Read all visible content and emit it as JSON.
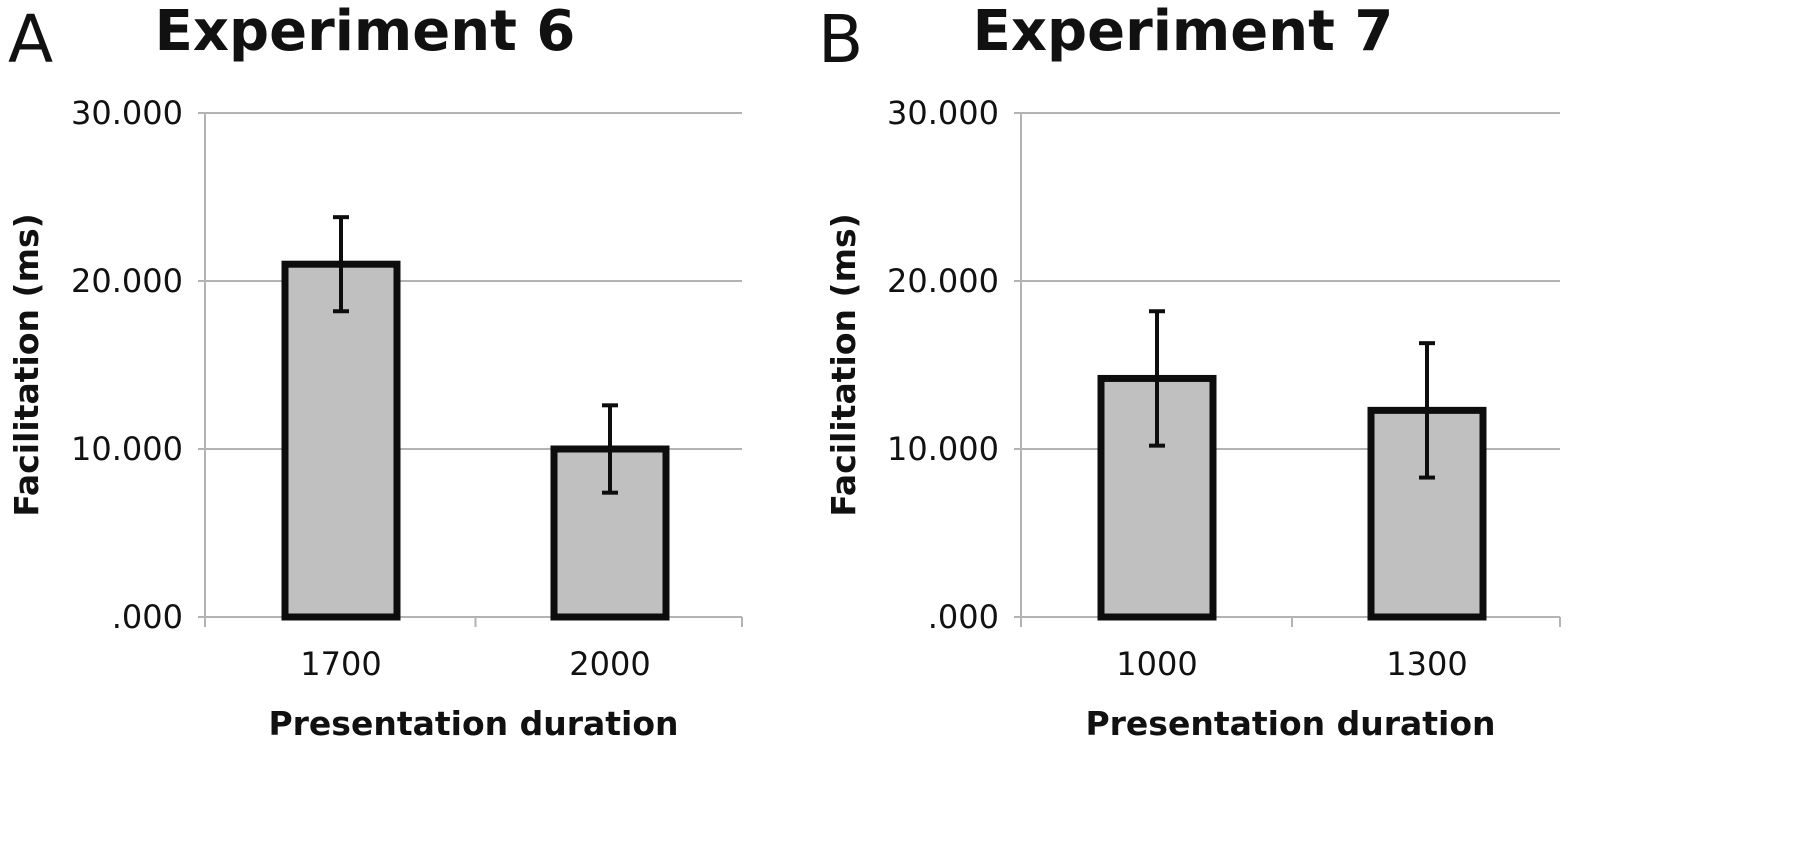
{
  "chart_data": [
    {
      "type": "bar",
      "panel": "A",
      "title": "Experiment 6",
      "xlabel": "Presentation duration",
      "ylabel": "Facilitation (ms)",
      "categories": [
        "1700",
        "2000"
      ],
      "values": [
        21.0,
        10.0
      ],
      "error": [
        2.8,
        2.6
      ],
      "ylim": [
        0,
        30
      ],
      "yticks": [
        0,
        10,
        20,
        30
      ],
      "ytick_labels": [
        ".000",
        "10.000",
        "20.000",
        "30.000"
      ],
      "grid": true,
      "legend": "none"
    },
    {
      "type": "bar",
      "panel": "B",
      "title": "Experiment 7",
      "xlabel": "Presentation duration",
      "ylabel": "Facilitation (ms)",
      "categories": [
        "1000",
        "1300"
      ],
      "values": [
        14.2,
        12.3
      ],
      "error": [
        4.0,
        4.0
      ],
      "ylim": [
        0,
        30
      ],
      "yticks": [
        0,
        10,
        20,
        30
      ],
      "ytick_labels": [
        ".000",
        "10.000",
        "20.000",
        "30.000"
      ],
      "grid": true,
      "legend": "none"
    }
  ],
  "colors": {
    "bar_fill": "#c0c0c0",
    "bar_stroke": "#0d0d0d",
    "grid": "#b3b3b3",
    "text": "#111111"
  }
}
